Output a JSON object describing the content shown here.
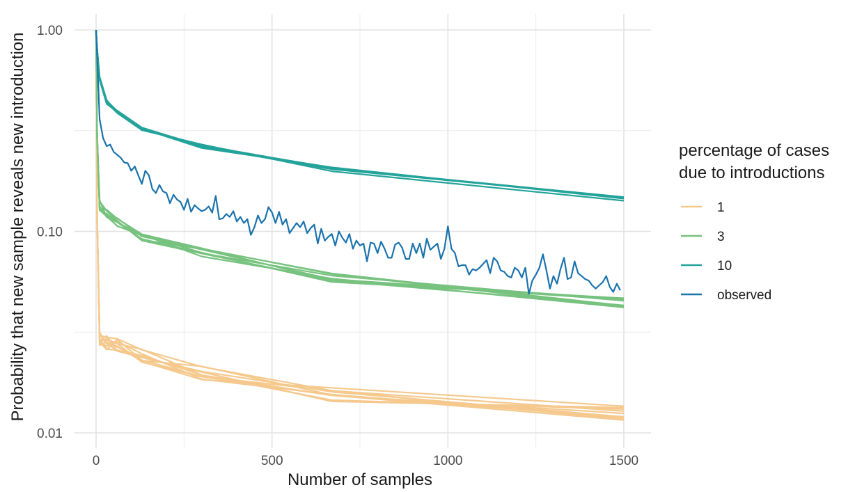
{
  "chart_data": {
    "type": "line",
    "xlabel": "Number of samples",
    "ylabel": "Probability that new sample reveals new introduction",
    "xlim": [
      -60,
      1560
    ],
    "ylim": [
      0.01,
      1.0
    ],
    "y_scale": "log",
    "grid": true,
    "x_ticks": [
      0,
      500,
      1000,
      1500
    ],
    "x_tick_labels": [
      "0",
      "500",
      "1000",
      "1500"
    ],
    "y_ticks": [
      0.01,
      0.1,
      1.0
    ],
    "y_tick_labels": [
      "0.01",
      "0.10",
      "1.00"
    ],
    "legend": {
      "title_lines": [
        "percentage of cases",
        "due to introductions"
      ],
      "position": "right",
      "entries": [
        {
          "label": "1",
          "color": "#f5c98d"
        },
        {
          "label": "3",
          "color": "#76c27e"
        },
        {
          "label": "10",
          "color": "#23a39a"
        },
        {
          "label": "observed",
          "color": "#1a73ad"
        }
      ]
    },
    "series": [
      {
        "name": "1",
        "color": "#f5c98d",
        "replicates": 10,
        "x": [
          0,
          3,
          10,
          30,
          60,
          130,
          300,
          670,
          1500
        ],
        "y": [
          1.0,
          0.12,
          0.029,
          0.028,
          0.027,
          0.024,
          0.02,
          0.0155,
          0.0125
        ]
      },
      {
        "name": "3",
        "color": "#76c27e",
        "replicates": 8,
        "x": [
          0,
          3,
          10,
          30,
          60,
          130,
          300,
          670,
          1500
        ],
        "y": [
          1.0,
          0.3,
          0.135,
          0.125,
          0.113,
          0.095,
          0.079,
          0.059,
          0.044
        ]
      },
      {
        "name": "10",
        "color": "#23a39a",
        "replicates": 6,
        "x": [
          0,
          3,
          10,
          30,
          60,
          130,
          300,
          670,
          1500
        ],
        "y": [
          1.0,
          0.8,
          0.57,
          0.44,
          0.39,
          0.325,
          0.265,
          0.203,
          0.145
        ]
      },
      {
        "name": "observed",
        "color": "#1a73ad",
        "x": [
          0,
          10,
          20,
          30,
          40,
          50,
          60,
          70,
          80,
          90,
          100,
          110,
          120,
          130,
          140,
          150,
          160,
          170,
          180,
          190,
          200,
          210,
          220,
          230,
          240,
          250,
          260,
          270,
          280,
          290,
          300,
          310,
          320,
          330,
          340,
          350,
          360,
          370,
          380,
          390,
          400,
          410,
          420,
          430,
          440,
          450,
          460,
          470,
          480,
          490,
          500,
          510,
          520,
          530,
          540,
          550,
          560,
          570,
          580,
          590,
          600,
          610,
          620,
          630,
          640,
          650,
          660,
          670,
          680,
          690,
          700,
          710,
          720,
          730,
          740,
          750,
          760,
          770,
          780,
          790,
          800,
          810,
          820,
          830,
          840,
          850,
          860,
          870,
          880,
          890,
          900,
          910,
          920,
          930,
          940,
          950,
          960,
          970,
          980,
          990,
          1000,
          1010,
          1020,
          1030,
          1040,
          1050,
          1060,
          1070,
          1080,
          1090,
          1100,
          1110,
          1120,
          1130,
          1140,
          1150,
          1160,
          1170,
          1180,
          1190,
          1200,
          1210,
          1220,
          1230,
          1240,
          1250,
          1260,
          1270,
          1280,
          1290,
          1300,
          1310,
          1320,
          1330,
          1340,
          1350,
          1360,
          1370,
          1380,
          1390,
          1400,
          1410,
          1420,
          1430,
          1440,
          1450,
          1460,
          1470,
          1480,
          1490
        ],
        "y": [
          1.0,
          0.36,
          0.29,
          0.265,
          0.27,
          0.248,
          0.24,
          0.232,
          0.22,
          0.218,
          0.2,
          0.21,
          0.19,
          0.172,
          0.2,
          0.19,
          0.162,
          0.155,
          0.17,
          0.158,
          0.155,
          0.138,
          0.152,
          0.144,
          0.14,
          0.128,
          0.145,
          0.125,
          0.135,
          0.13,
          0.126,
          0.128,
          0.133,
          0.124,
          0.15,
          0.115,
          0.116,
          0.122,
          0.118,
          0.126,
          0.112,
          0.118,
          0.11,
          0.115,
          0.096,
          0.105,
          0.12,
          0.11,
          0.115,
          0.132,
          0.124,
          0.11,
          0.125,
          0.108,
          0.115,
          0.098,
          0.104,
          0.11,
          0.105,
          0.112,
          0.098,
          0.104,
          0.108,
          0.087,
          0.103,
          0.09,
          0.094,
          0.097,
          0.085,
          0.1,
          0.093,
          0.088,
          0.097,
          0.082,
          0.09,
          0.085,
          0.087,
          0.071,
          0.088,
          0.087,
          0.078,
          0.089,
          0.082,
          0.074,
          0.074,
          0.086,
          0.088,
          0.083,
          0.073,
          0.073,
          0.087,
          0.078,
          0.087,
          0.074,
          0.092,
          0.081,
          0.084,
          0.087,
          0.073,
          0.082,
          0.106,
          0.082,
          0.078,
          0.067,
          0.068,
          0.068,
          0.061,
          0.065,
          0.064,
          0.066,
          0.069,
          0.072,
          0.062,
          0.074,
          0.071,
          0.064,
          0.063,
          0.06,
          0.059,
          0.066,
          0.064,
          0.059,
          0.066,
          0.049,
          0.057,
          0.061,
          0.066,
          0.077,
          0.064,
          0.052,
          0.06,
          0.055,
          0.065,
          0.074,
          0.058,
          0.059,
          0.071,
          0.062,
          0.06,
          0.058,
          0.057,
          0.054,
          0.052,
          0.054,
          0.056,
          0.06,
          0.053,
          0.05,
          0.055,
          0.051
        ]
      }
    ]
  }
}
